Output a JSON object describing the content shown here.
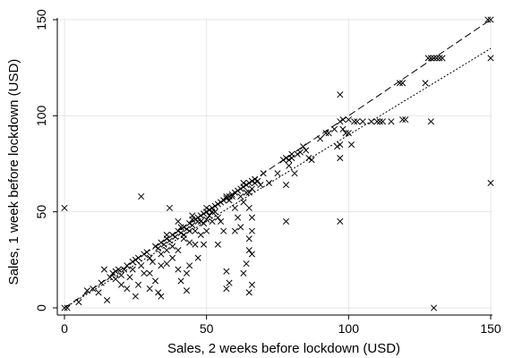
{
  "chart_data": {
    "type": "scatter",
    "title": "",
    "xlabel": "Sales, 2 weeks before lockdown (USD)",
    "ylabel": "Sales, 1 week before lockdown (USD)",
    "xlim": [
      0,
      150
    ],
    "ylim": [
      0,
      150
    ],
    "xticks": [
      0,
      50,
      100,
      150
    ],
    "yticks": [
      0,
      50,
      100,
      150
    ],
    "grid": true,
    "marker": "x",
    "colors": {
      "marker": "#000000",
      "grid": "#e6e6e6",
      "axis": "#000000"
    },
    "points": [
      [
        0,
        0
      ],
      [
        1,
        0
      ],
      [
        0,
        52
      ],
      [
        5,
        3
      ],
      [
        8,
        9
      ],
      [
        10,
        10
      ],
      [
        12,
        8
      ],
      [
        13,
        13
      ],
      [
        14,
        20
      ],
      [
        15,
        4
      ],
      [
        16,
        16
      ],
      [
        17,
        18
      ],
      [
        18,
        15
      ],
      [
        18,
        19
      ],
      [
        19,
        20
      ],
      [
        20,
        12
      ],
      [
        20,
        17
      ],
      [
        21,
        20
      ],
      [
        22,
        10
      ],
      [
        22,
        22
      ],
      [
        23,
        16
      ],
      [
        24,
        24
      ],
      [
        24,
        20
      ],
      [
        25,
        25
      ],
      [
        25,
        6
      ],
      [
        26,
        26
      ],
      [
        26,
        12
      ],
      [
        27,
        22
      ],
      [
        27,
        58
      ],
      [
        28,
        28
      ],
      [
        28,
        18
      ],
      [
        29,
        29
      ],
      [
        30,
        26
      ],
      [
        30,
        18
      ],
      [
        30,
        10
      ],
      [
        31,
        24
      ],
      [
        32,
        32
      ],
      [
        32,
        14
      ],
      [
        33,
        31
      ],
      [
        33,
        8
      ],
      [
        34,
        34
      ],
      [
        34,
        28
      ],
      [
        34,
        22
      ],
      [
        34,
        6
      ],
      [
        35,
        33
      ],
      [
        36,
        36
      ],
      [
        36,
        30
      ],
      [
        36,
        23
      ],
      [
        36,
        38
      ],
      [
        37,
        52
      ],
      [
        37,
        35
      ],
      [
        38,
        38
      ],
      [
        38,
        32
      ],
      [
        38,
        26
      ],
      [
        39,
        37
      ],
      [
        40,
        40
      ],
      [
        40,
        30
      ],
      [
        40,
        20
      ],
      [
        40,
        45
      ],
      [
        41,
        39
      ],
      [
        41,
        42
      ],
      [
        41,
        14
      ],
      [
        42,
        42
      ],
      [
        42,
        36
      ],
      [
        42,
        38
      ],
      [
        43,
        41
      ],
      [
        43,
        18
      ],
      [
        43,
        9
      ],
      [
        44,
        44
      ],
      [
        44,
        40
      ],
      [
        44,
        34
      ],
      [
        44,
        22
      ],
      [
        45,
        43
      ],
      [
        45,
        46
      ],
      [
        45,
        48
      ],
      [
        46,
        46
      ],
      [
        46,
        40
      ],
      [
        46,
        33
      ],
      [
        47,
        47
      ],
      [
        47,
        45
      ],
      [
        47,
        26
      ],
      [
        48,
        48
      ],
      [
        48,
        45
      ],
      [
        48,
        38
      ],
      [
        49,
        49
      ],
      [
        49,
        44
      ],
      [
        49,
        33
      ],
      [
        50,
        50
      ],
      [
        50,
        52
      ],
      [
        50,
        46
      ],
      [
        50,
        40
      ],
      [
        51,
        51
      ],
      [
        51,
        48
      ],
      [
        52,
        52
      ],
      [
        52,
        50
      ],
      [
        52,
        45
      ],
      [
        53,
        53
      ],
      [
        53,
        50
      ],
      [
        54,
        54
      ],
      [
        54,
        47
      ],
      [
        54,
        33
      ],
      [
        55,
        55
      ],
      [
        55,
        45
      ],
      [
        56,
        56
      ],
      [
        56,
        40
      ],
      [
        57,
        57
      ],
      [
        57,
        58
      ],
      [
        57,
        10
      ],
      [
        57,
        19
      ],
      [
        58,
        58
      ],
      [
        58,
        56
      ],
      [
        58,
        13
      ],
      [
        59,
        59
      ],
      [
        59,
        58
      ],
      [
        60,
        60
      ],
      [
        60,
        52
      ],
      [
        60,
        40
      ],
      [
        61,
        61
      ],
      [
        61,
        47
      ],
      [
        62,
        62
      ],
      [
        62,
        58
      ],
      [
        62,
        42
      ],
      [
        63,
        63
      ],
      [
        63,
        65
      ],
      [
        63,
        55
      ],
      [
        63,
        18
      ],
      [
        64,
        64
      ],
      [
        64,
        60
      ],
      [
        64,
        23
      ],
      [
        65,
        65
      ],
      [
        65,
        60
      ],
      [
        65,
        52
      ],
      [
        65,
        36
      ],
      [
        65,
        30
      ],
      [
        65,
        8
      ],
      [
        66,
        66
      ],
      [
        66,
        62
      ],
      [
        66,
        47
      ],
      [
        66,
        40
      ],
      [
        66,
        28
      ],
      [
        66,
        12
      ],
      [
        67,
        67
      ],
      [
        67,
        65
      ],
      [
        68,
        66
      ],
      [
        69,
        64
      ],
      [
        70,
        70
      ],
      [
        72,
        65
      ],
      [
        75,
        70
      ],
      [
        77,
        77
      ],
      [
        78,
        78
      ],
      [
        78,
        64
      ],
      [
        78,
        45
      ],
      [
        79,
        74
      ],
      [
        79,
        77
      ],
      [
        80,
        80
      ],
      [
        80,
        78
      ],
      [
        81,
        70
      ],
      [
        82,
        80
      ],
      [
        83,
        81
      ],
      [
        84,
        84
      ],
      [
        85,
        82
      ],
      [
        86,
        78
      ],
      [
        87,
        77
      ],
      [
        90,
        88
      ],
      [
        92,
        91
      ],
      [
        93,
        91
      ],
      [
        95,
        93
      ],
      [
        96,
        84
      ],
      [
        97,
        97
      ],
      [
        97,
        111
      ],
      [
        97,
        45
      ],
      [
        97,
        78
      ],
      [
        97,
        85
      ],
      [
        98,
        98
      ],
      [
        98,
        93
      ],
      [
        99,
        91
      ],
      [
        100,
        98
      ],
      [
        100,
        91
      ],
      [
        101,
        85
      ],
      [
        102,
        97
      ],
      [
        103,
        97
      ],
      [
        105,
        97
      ],
      [
        108,
        97
      ],
      [
        110,
        97
      ],
      [
        111,
        97
      ],
      [
        112,
        97
      ],
      [
        115,
        97
      ],
      [
        118,
        117
      ],
      [
        119,
        117
      ],
      [
        119,
        98
      ],
      [
        120,
        98
      ],
      [
        127,
        117
      ],
      [
        128,
        130
      ],
      [
        129,
        130
      ],
      [
        129,
        97
      ],
      [
        130,
        130
      ],
      [
        130,
        0
      ],
      [
        131,
        130
      ],
      [
        132,
        130
      ],
      [
        133,
        130
      ],
      [
        150,
        150
      ],
      [
        150,
        130
      ],
      [
        150,
        65
      ],
      [
        149,
        150
      ]
    ],
    "lines": [
      {
        "style": "dashed",
        "x": [
          0,
          150
        ],
        "y": [
          0,
          150
        ]
      },
      {
        "style": "dotted",
        "x": [
          0,
          150
        ],
        "y": [
          0,
          135
        ]
      }
    ]
  }
}
